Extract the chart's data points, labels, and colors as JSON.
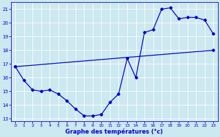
{
  "xlabel": "Graphe des températures (°c)",
  "bg_color": "#cce8f0",
  "line_color": "#0000cc",
  "grid_color": "#ffffff",
  "ylim": [
    12.8,
    21.5
  ],
  "yticks": [
    13,
    14,
    15,
    16,
    17,
    18,
    19,
    20,
    21
  ],
  "xlim": [
    -0.5,
    23.5
  ],
  "xticks": [
    0,
    1,
    2,
    3,
    4,
    5,
    6,
    7,
    8,
    9,
    10,
    11,
    12,
    13,
    14,
    15,
    16,
    17,
    18,
    19,
    20,
    21,
    22,
    23
  ],
  "line1_x": [
    0,
    1,
    2,
    3,
    4,
    5,
    6,
    7,
    8,
    9,
    10,
    11,
    12,
    13,
    14,
    15,
    16,
    17,
    18,
    19,
    20,
    21,
    22,
    23
  ],
  "line1_y": [
    16.8,
    15.8,
    15.1,
    15.0,
    15.1,
    14.8,
    14.3,
    13.7,
    13.2,
    13.2,
    13.3,
    14.2,
    14.8,
    17.4,
    16.0,
    19.3,
    19.5,
    21.0,
    21.1,
    20.3,
    20.4,
    20.4,
    20.2,
    19.2
  ],
  "line2_x": [
    0,
    23
  ],
  "line2_y": [
    16.8,
    18.0
  ]
}
